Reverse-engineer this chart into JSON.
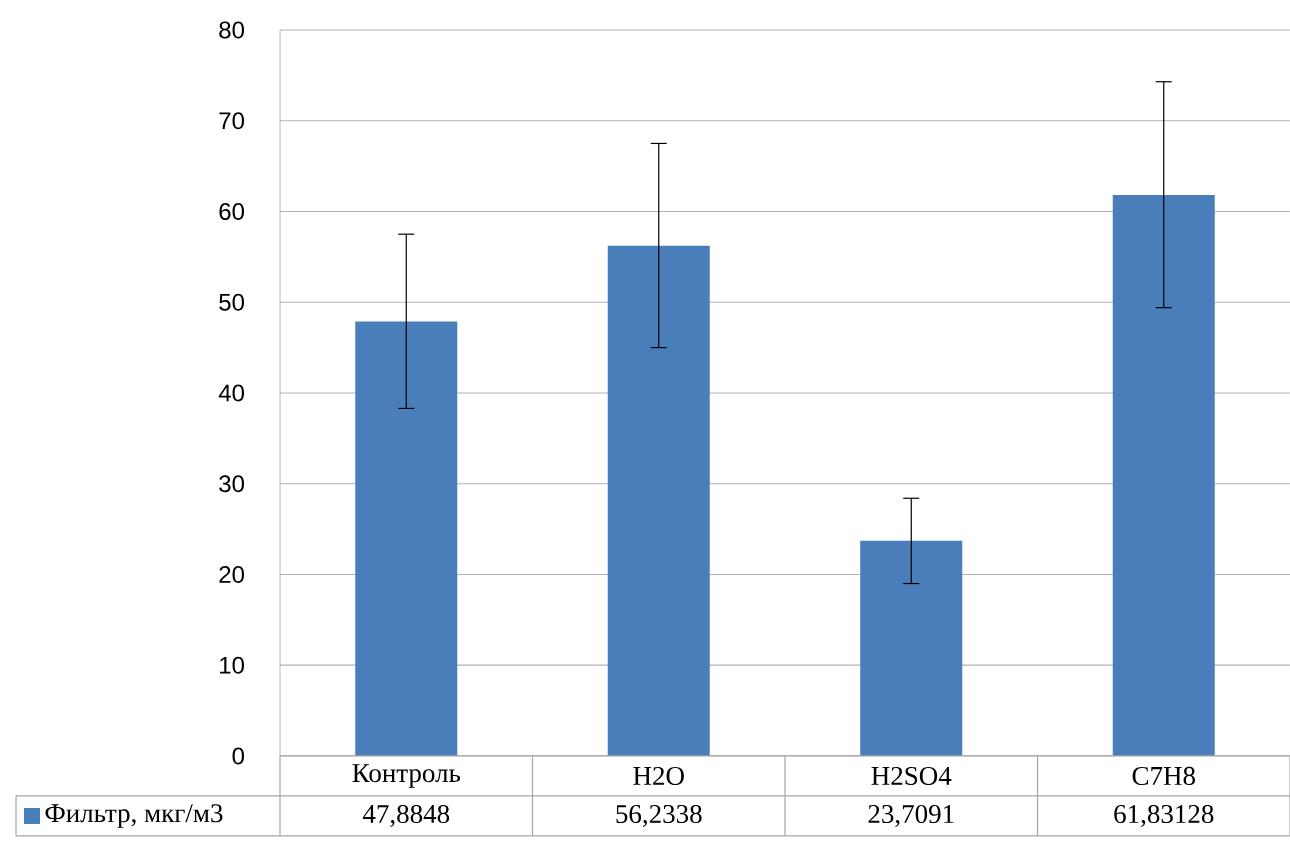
{
  "chart_data": {
    "type": "bar",
    "categories": [
      "Контроль",
      "H2O",
      "H2SO4",
      "C7H8"
    ],
    "series": [
      {
        "name": "Фильтр, мкг/м3",
        "color": "#4a7ebb",
        "values": [
          47.8848,
          56.2338,
          23.7091,
          61.83128
        ],
        "errors": [
          [
            38.3,
            57.5
          ],
          [
            45,
            67.5
          ],
          [
            19,
            28.4
          ],
          [
            49.4,
            74.3
          ]
        ],
        "value_labels": [
          "47,8848",
          "56,2338",
          "23,7091",
          "61,83128"
        ]
      }
    ],
    "ylim": [
      0,
      80
    ],
    "yticks": [
      0,
      10,
      20,
      30,
      40,
      50,
      60,
      70,
      80
    ],
    "grid": "y",
    "legend": "bottom"
  }
}
